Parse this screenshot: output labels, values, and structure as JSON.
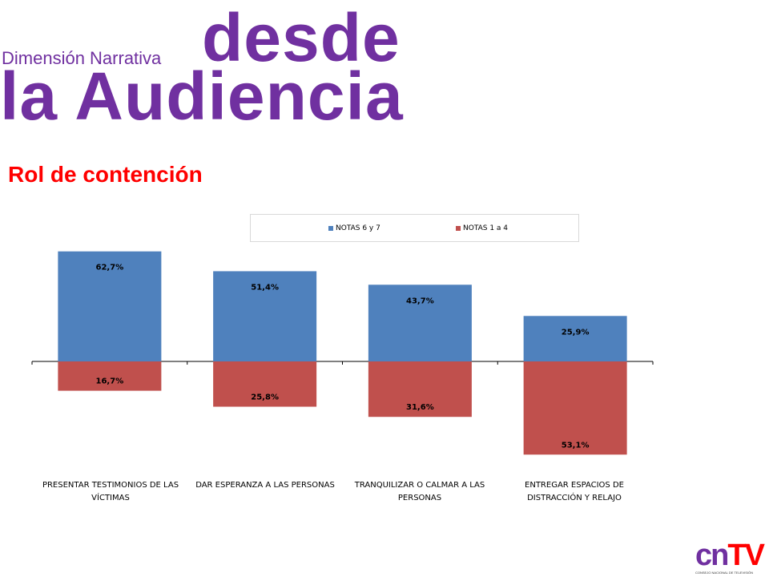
{
  "header": {
    "subtitle": "Dimensión Narrativa",
    "title_line1": "desde",
    "title_line2": "la Audiencia",
    "section_title": "Rol de contención"
  },
  "colors": {
    "title": "#7030a0",
    "section_title": "#ff0000",
    "series_positive": "#4f81bd",
    "series_negative": "#c0504d"
  },
  "logo": {
    "part1": "cn",
    "part2": "TV",
    "caption": "CONSEJO NACIONAL DE TELEVISIÓN"
  },
  "chart_data": {
    "type": "bar",
    "stacked_diverging": true,
    "categories": [
      "PRESENTAR  TESTIMONIOS  DE  LAS VÍCTIMAS",
      "DAR  ESPERANZA A  LAS PERSONAS",
      "TRANQUILIZAR  O  CALMAR  A LAS PERSONAS",
      "ENTREGAR  ESPACIOS DE DISTRACCIÓN Y  RELAJO"
    ],
    "series": [
      {
        "name": "NOTAS 6 y 7",
        "values": [
          62.7,
          51.4,
          43.7,
          25.9
        ],
        "labels": [
          "62,7%",
          "51,4%",
          "43,7%",
          "25,9%"
        ],
        "color": "#4f81bd",
        "direction": "up"
      },
      {
        "name": "NOTAS 1 a 4",
        "values": [
          16.7,
          25.8,
          31.6,
          53.1
        ],
        "labels": [
          "16,7%",
          "25,8%",
          "31,6%",
          "53,1%"
        ],
        "color": "#c0504d",
        "direction": "down"
      }
    ],
    "legend_position": "top",
    "grid": false
  }
}
